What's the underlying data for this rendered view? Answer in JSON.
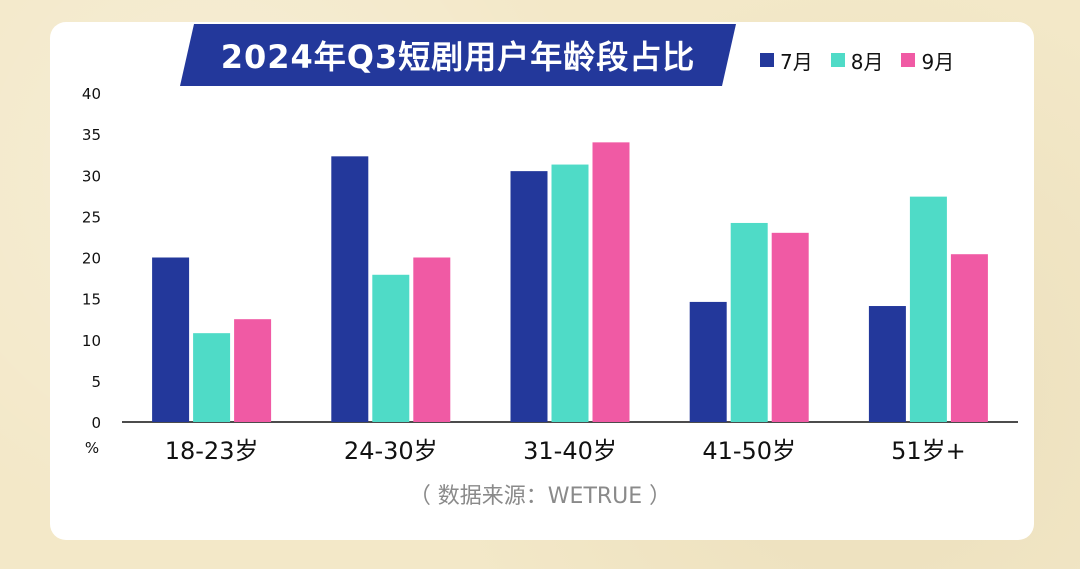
{
  "chart_data": {
    "type": "bar",
    "title": "2024年Q3短剧用户年龄段占比",
    "ylabel": "%",
    "ylim": [
      0,
      40
    ],
    "yticks": [
      0,
      5,
      10,
      15,
      20,
      25,
      30,
      35,
      40
    ],
    "grid": false,
    "legend_position": "top-right",
    "categories": [
      "18-23岁",
      "24-30岁",
      "31-40岁",
      "41-50岁",
      "51岁+"
    ],
    "series": [
      {
        "name": "7月",
        "color": "#23389b",
        "values": [
          20.0,
          32.3,
          30.5,
          14.6,
          14.1
        ]
      },
      {
        "name": "8月",
        "color": "#4fdbc7",
        "values": [
          10.8,
          17.9,
          31.3,
          24.2,
          27.4
        ]
      },
      {
        "name": "9月",
        "color": "#f05aa4",
        "values": [
          12.5,
          20.0,
          34.0,
          23.0,
          20.4
        ]
      }
    ],
    "source": "（ 数据来源：WETRUE ）"
  },
  "colors": {
    "title_bg": "#23389b",
    "axis": "#111111",
    "card_bg": "#ffffff",
    "page_bg": "#f3e8c8"
  }
}
